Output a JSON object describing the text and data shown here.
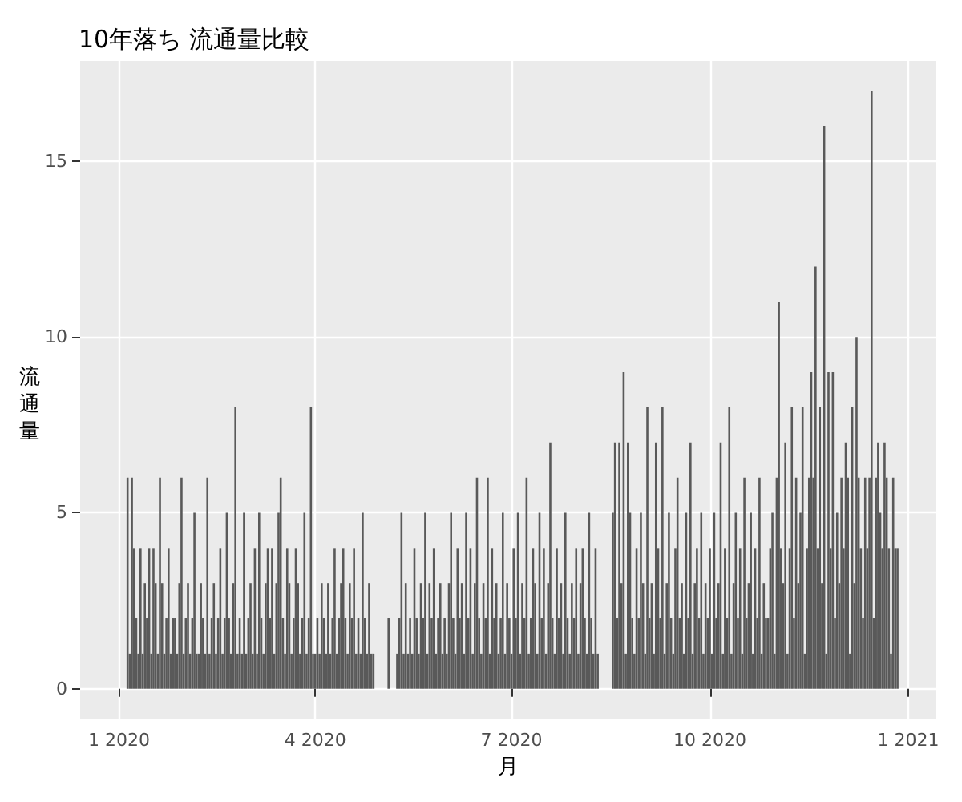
{
  "chart_data": {
    "type": "bar",
    "title": "10年落ち 流通量比較",
    "xlabel": "月",
    "ylabel": "流通量",
    "x": [
      "2020-01-05",
      "2020-01-06",
      "2020-01-07",
      "2020-01-08",
      "2020-01-09",
      "2020-01-10",
      "2020-01-11",
      "2020-01-12",
      "2020-01-13",
      "2020-01-14",
      "2020-01-15",
      "2020-01-16",
      "2020-01-17",
      "2020-01-18",
      "2020-01-19",
      "2020-01-20",
      "2020-01-21",
      "2020-01-22",
      "2020-01-23",
      "2020-01-24",
      "2020-01-25",
      "2020-01-26",
      "2020-01-27",
      "2020-01-28",
      "2020-01-29",
      "2020-01-30",
      "2020-01-31",
      "2020-02-01",
      "2020-02-02",
      "2020-02-03",
      "2020-02-04",
      "2020-02-05",
      "2020-02-06",
      "2020-02-07",
      "2020-02-08",
      "2020-02-09",
      "2020-02-10",
      "2020-02-11",
      "2020-02-12",
      "2020-02-13",
      "2020-02-14",
      "2020-02-15",
      "2020-02-16",
      "2020-02-17",
      "2020-02-18",
      "2020-02-19",
      "2020-02-20",
      "2020-02-21",
      "2020-02-22",
      "2020-02-23",
      "2020-02-24",
      "2020-02-25",
      "2020-02-26",
      "2020-02-27",
      "2020-02-28",
      "2020-02-29",
      "2020-03-01",
      "2020-03-02",
      "2020-03-03",
      "2020-03-04",
      "2020-03-05",
      "2020-03-06",
      "2020-03-07",
      "2020-03-08",
      "2020-03-09",
      "2020-03-10",
      "2020-03-11",
      "2020-03-12",
      "2020-03-13",
      "2020-03-14",
      "2020-03-15",
      "2020-03-16",
      "2020-03-17",
      "2020-03-18",
      "2020-03-19",
      "2020-03-20",
      "2020-03-21",
      "2020-03-22",
      "2020-03-23",
      "2020-03-24",
      "2020-03-25",
      "2020-03-26",
      "2020-03-27",
      "2020-03-28",
      "2020-03-29",
      "2020-03-30",
      "2020-03-31",
      "2020-04-01",
      "2020-04-02",
      "2020-04-03",
      "2020-04-04",
      "2020-04-05",
      "2020-04-06",
      "2020-04-07",
      "2020-04-08",
      "2020-04-09",
      "2020-04-10",
      "2020-04-11",
      "2020-04-12",
      "2020-04-13",
      "2020-04-14",
      "2020-04-15",
      "2020-04-16",
      "2020-04-17",
      "2020-04-18",
      "2020-04-19",
      "2020-04-20",
      "2020-04-21",
      "2020-04-22",
      "2020-04-23",
      "2020-04-24",
      "2020-04-25",
      "2020-04-26",
      "2020-04-27",
      "2020-04-28",
      "2020-05-05",
      "2020-05-09",
      "2020-05-10",
      "2020-05-11",
      "2020-05-12",
      "2020-05-13",
      "2020-05-14",
      "2020-05-15",
      "2020-05-16",
      "2020-05-17",
      "2020-05-18",
      "2020-05-19",
      "2020-05-20",
      "2020-05-21",
      "2020-05-22",
      "2020-05-23",
      "2020-05-24",
      "2020-05-25",
      "2020-05-26",
      "2020-05-27",
      "2020-05-28",
      "2020-05-29",
      "2020-05-30",
      "2020-05-31",
      "2020-06-01",
      "2020-06-02",
      "2020-06-03",
      "2020-06-04",
      "2020-06-05",
      "2020-06-06",
      "2020-06-07",
      "2020-06-08",
      "2020-06-09",
      "2020-06-10",
      "2020-06-11",
      "2020-06-12",
      "2020-06-13",
      "2020-06-14",
      "2020-06-15",
      "2020-06-16",
      "2020-06-17",
      "2020-06-18",
      "2020-06-19",
      "2020-06-20",
      "2020-06-21",
      "2020-06-22",
      "2020-06-23",
      "2020-06-24",
      "2020-06-25",
      "2020-06-26",
      "2020-06-27",
      "2020-06-28",
      "2020-06-29",
      "2020-06-30",
      "2020-07-01",
      "2020-07-02",
      "2020-07-03",
      "2020-07-04",
      "2020-07-05",
      "2020-07-06",
      "2020-07-07",
      "2020-07-08",
      "2020-07-09",
      "2020-07-10",
      "2020-07-11",
      "2020-07-12",
      "2020-07-13",
      "2020-07-14",
      "2020-07-15",
      "2020-07-16",
      "2020-07-17",
      "2020-07-18",
      "2020-07-19",
      "2020-07-20",
      "2020-07-21",
      "2020-07-22",
      "2020-07-23",
      "2020-07-24",
      "2020-07-25",
      "2020-07-26",
      "2020-07-27",
      "2020-07-28",
      "2020-07-29",
      "2020-07-30",
      "2020-07-31",
      "2020-08-01",
      "2020-08-02",
      "2020-08-03",
      "2020-08-04",
      "2020-08-05",
      "2020-08-06",
      "2020-08-07",
      "2020-08-08",
      "2020-08-09",
      "2020-08-10",
      "2020-08-17",
      "2020-08-18",
      "2020-08-19",
      "2020-08-20",
      "2020-08-21",
      "2020-08-22",
      "2020-08-23",
      "2020-08-24",
      "2020-08-25",
      "2020-08-26",
      "2020-08-27",
      "2020-08-28",
      "2020-08-29",
      "2020-08-30",
      "2020-08-31",
      "2020-09-01",
      "2020-09-02",
      "2020-09-03",
      "2020-09-04",
      "2020-09-05",
      "2020-09-06",
      "2020-09-07",
      "2020-09-08",
      "2020-09-09",
      "2020-09-10",
      "2020-09-11",
      "2020-09-12",
      "2020-09-13",
      "2020-09-14",
      "2020-09-15",
      "2020-09-16",
      "2020-09-17",
      "2020-09-18",
      "2020-09-19",
      "2020-09-20",
      "2020-09-21",
      "2020-09-22",
      "2020-09-23",
      "2020-09-24",
      "2020-09-25",
      "2020-09-26",
      "2020-09-27",
      "2020-09-28",
      "2020-09-29",
      "2020-09-30",
      "2020-10-01",
      "2020-10-02",
      "2020-10-03",
      "2020-10-04",
      "2020-10-05",
      "2020-10-06",
      "2020-10-07",
      "2020-10-08",
      "2020-10-09",
      "2020-10-10",
      "2020-10-11",
      "2020-10-12",
      "2020-10-13",
      "2020-10-14",
      "2020-10-15",
      "2020-10-16",
      "2020-10-17",
      "2020-10-18",
      "2020-10-19",
      "2020-10-20",
      "2020-10-21",
      "2020-10-22",
      "2020-10-23",
      "2020-10-24",
      "2020-10-25",
      "2020-10-26",
      "2020-10-27",
      "2020-10-28",
      "2020-10-29",
      "2020-10-30",
      "2020-10-31",
      "2020-11-01",
      "2020-11-02",
      "2020-11-03",
      "2020-11-04",
      "2020-11-05",
      "2020-11-06",
      "2020-11-07",
      "2020-11-08",
      "2020-11-09",
      "2020-11-10",
      "2020-11-11",
      "2020-11-12",
      "2020-11-13",
      "2020-11-14",
      "2020-11-15",
      "2020-11-16",
      "2020-11-17",
      "2020-11-18",
      "2020-11-19",
      "2020-11-20",
      "2020-11-21",
      "2020-11-22",
      "2020-11-23",
      "2020-11-24",
      "2020-11-25",
      "2020-11-26",
      "2020-11-27",
      "2020-11-28",
      "2020-11-29",
      "2020-11-30",
      "2020-12-01",
      "2020-12-02",
      "2020-12-03",
      "2020-12-04",
      "2020-12-05",
      "2020-12-06",
      "2020-12-07",
      "2020-12-08",
      "2020-12-09",
      "2020-12-10",
      "2020-12-11",
      "2020-12-12",
      "2020-12-13",
      "2020-12-14",
      "2020-12-15",
      "2020-12-16",
      "2020-12-17",
      "2020-12-18",
      "2020-12-19",
      "2020-12-20",
      "2020-12-21",
      "2020-12-22",
      "2020-12-23",
      "2020-12-24",
      "2020-12-25",
      "2020-12-26",
      "2020-12-27"
    ],
    "values": [
      6,
      1,
      6,
      4,
      2,
      1,
      4,
      1,
      3,
      2,
      4,
      1,
      4,
      3,
      1,
      6,
      3,
      1,
      2,
      4,
      1,
      2,
      2,
      1,
      3,
      6,
      1,
      2,
      3,
      1,
      2,
      5,
      1,
      1,
      3,
      2,
      1,
      6,
      1,
      2,
      3,
      1,
      2,
      4,
      1,
      2,
      5,
      2,
      1,
      3,
      8,
      1,
      2,
      1,
      5,
      1,
      2,
      3,
      1,
      4,
      1,
      5,
      2,
      1,
      3,
      4,
      2,
      4,
      1,
      3,
      5,
      6,
      2,
      1,
      4,
      3,
      1,
      2,
      4,
      3,
      1,
      2,
      5,
      1,
      2,
      8,
      1,
      1,
      2,
      1,
      3,
      2,
      1,
      3,
      1,
      2,
      4,
      1,
      2,
      3,
      4,
      2,
      1,
      3,
      2,
      4,
      1,
      2,
      1,
      5,
      2,
      1,
      3,
      1,
      1,
      2,
      1,
      2,
      5,
      1,
      3,
      1,
      2,
      1,
      4,
      2,
      1,
      3,
      2,
      5,
      1,
      3,
      2,
      4,
      1,
      2,
      3,
      1,
      2,
      1,
      3,
      5,
      2,
      1,
      4,
      2,
      3,
      1,
      5,
      2,
      4,
      1,
      3,
      6,
      2,
      1,
      3,
      2,
      6,
      1,
      4,
      2,
      3,
      1,
      2,
      5,
      1,
      3,
      2,
      1,
      4,
      2,
      5,
      1,
      3,
      2,
      6,
      1,
      2,
      4,
      3,
      1,
      5,
      2,
      4,
      1,
      3,
      7,
      2,
      1,
      4,
      2,
      3,
      1,
      5,
      2,
      1,
      3,
      2,
      4,
      1,
      3,
      4,
      2,
      1,
      5,
      2,
      1,
      4,
      1,
      5,
      7,
      2,
      7,
      3,
      9,
      1,
      7,
      5,
      2,
      1,
      4,
      2,
      5,
      3,
      1,
      8,
      2,
      3,
      1,
      7,
      4,
      2,
      8,
      1,
      3,
      5,
      2,
      1,
      4,
      6,
      2,
      3,
      1,
      5,
      2,
      7,
      1,
      3,
      4,
      2,
      5,
      1,
      3,
      2,
      4,
      1,
      5,
      2,
      3,
      7,
      1,
      4,
      2,
      8,
      1,
      3,
      5,
      2,
      4,
      1,
      6,
      2,
      3,
      5,
      1,
      4,
      2,
      6,
      1,
      3,
      2,
      2,
      4,
      5,
      1,
      6,
      11,
      4,
      3,
      7,
      1,
      4,
      8,
      2,
      6,
      3,
      5,
      8,
      1,
      4,
      6,
      9,
      6,
      12,
      4,
      8,
      3,
      16,
      1,
      9,
      4,
      9,
      2,
      5,
      3,
      6,
      4,
      7,
      6,
      1,
      8,
      3,
      10,
      6,
      4,
      2,
      6,
      4,
      6,
      17,
      2,
      6,
      7,
      5,
      4,
      7,
      6,
      4,
      1,
      6,
      4,
      4
    ],
    "color": "#595959",
    "xlim": [
      "2019-12-14",
      "2021-01-14"
    ],
    "xticks": [
      {
        "value": "2020-01-01",
        "label": "1 2020"
      },
      {
        "value": "2020-04-01",
        "label": "4 2020"
      },
      {
        "value": "2020-07-01",
        "label": "7 2020"
      },
      {
        "value": "2020-10-01",
        "label": "10 2020"
      },
      {
        "value": "2021-01-01",
        "label": "1 2021"
      }
    ],
    "ylim": [
      -0.85,
      17.85
    ],
    "yticks": [
      0,
      5,
      10,
      15
    ],
    "grid": true
  }
}
